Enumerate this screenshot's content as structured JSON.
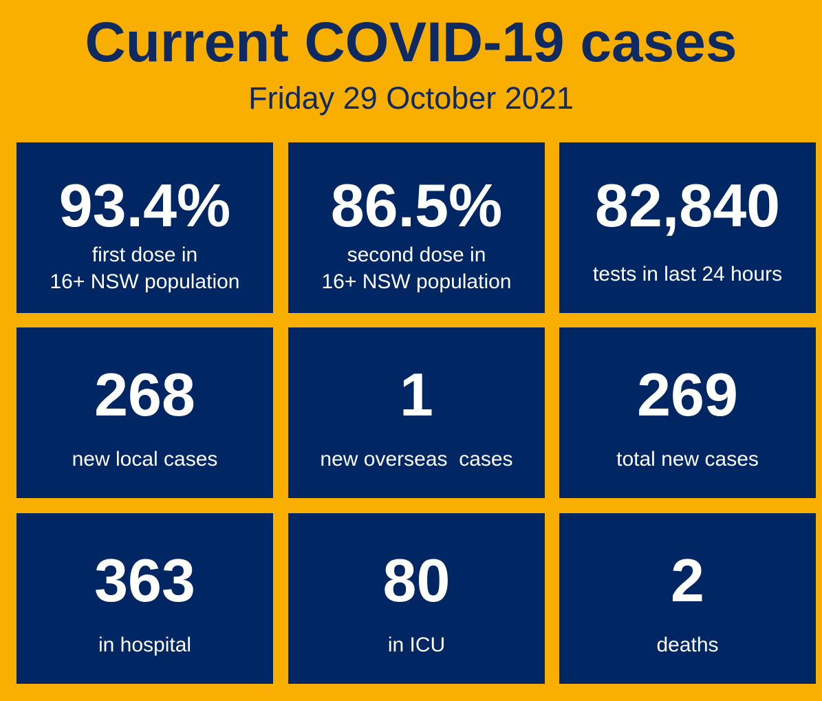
{
  "header": {
    "title": "Current COVID-19 cases",
    "date": "Friday 29 October 2021"
  },
  "colors": {
    "background": "#F9AF00",
    "tile": "#002664",
    "title_text": "#0F2A61",
    "tile_text": "#FFFFFF"
  },
  "stats": [
    {
      "value": "93.4%",
      "label": "first dose in\n16+ NSW population"
    },
    {
      "value": "86.5%",
      "label": "second dose in\n16+ NSW population"
    },
    {
      "value": "82,840",
      "label": "tests in last 24 hours"
    },
    {
      "value": "268",
      "label": "new local cases"
    },
    {
      "value": "1",
      "label": "new overseas  cases"
    },
    {
      "value": "269",
      "label": "total new cases"
    },
    {
      "value": "363",
      "label": "in hospital"
    },
    {
      "value": "80",
      "label": "in ICU"
    },
    {
      "value": "2",
      "label": "deaths"
    }
  ]
}
